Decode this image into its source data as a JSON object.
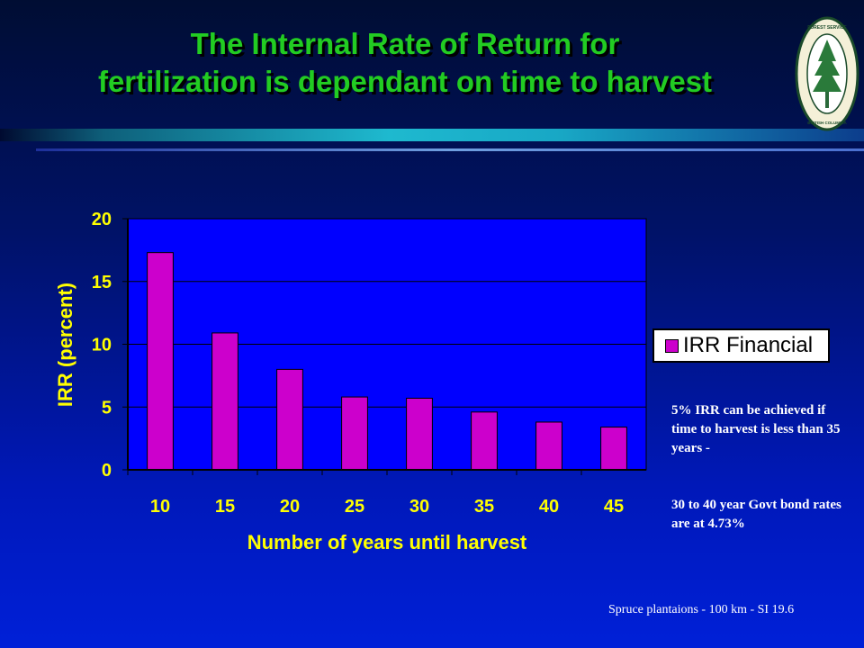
{
  "slide": {
    "title_line1": "The Internal Rate of Return for",
    "title_line2": "fertilization is dependant on time to harvest",
    "footer": "Spruce plantaions - 100 km - SI 19.6"
  },
  "logo": {
    "top_text": "FOREST SERVICE",
    "bottom_text": "BRITISH COLUMBIA",
    "icon": "tree-icon"
  },
  "notes": {
    "note1": "5% IRR can be achieved if time to harvest is less than 35 years -",
    "note2": "30 to 40 year Govt bond rates are at 4.73%"
  },
  "colors": {
    "title": "#22cc22",
    "bar": "#cc00cc",
    "axis_text": "#ffff00",
    "plot_background": "#0000ff"
  },
  "chart_data": {
    "type": "bar",
    "categories": [
      "10",
      "15",
      "20",
      "25",
      "30",
      "35",
      "40",
      "45"
    ],
    "series": [
      {
        "name": "IRR Financial",
        "values": [
          17.3,
          10.9,
          8.0,
          5.8,
          5.7,
          4.6,
          3.8,
          3.4
        ]
      }
    ],
    "xlabel": "Number of years until harvest",
    "ylabel": "IRR (percent)",
    "ylim": [
      0,
      20
    ],
    "yticks": [
      "0",
      "5",
      "10",
      "15",
      "20"
    ],
    "grid": true,
    "legend": "right"
  }
}
